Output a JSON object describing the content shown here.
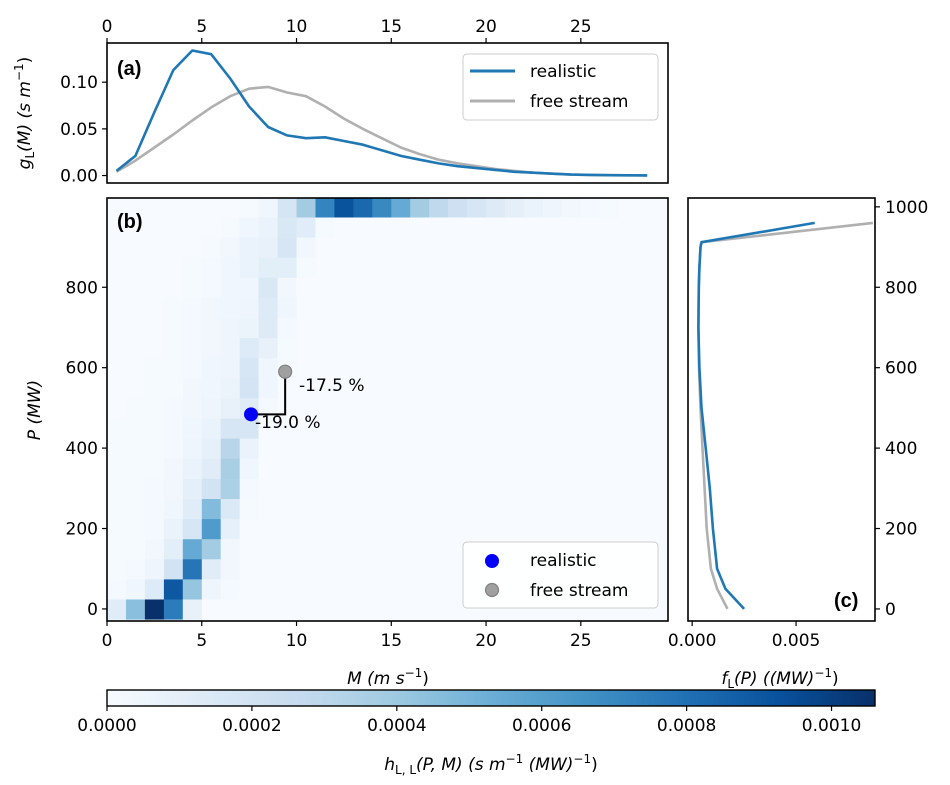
{
  "colors": {
    "realistic": "#1f77b4",
    "free_stream": "#b0b0b0",
    "realistic_marker": "#0000ff",
    "free_stream_marker": "#a0a0a0",
    "cmap": [
      "#f7fbff",
      "#deebf7",
      "#c6dbef",
      "#9ecae1",
      "#6baed6",
      "#4292c6",
      "#2171b5",
      "#08519c",
      "#08306b"
    ]
  },
  "chart_data": [
    {
      "id": "a",
      "type": "line",
      "panel_label": "(a)",
      "xlabel": "",
      "ylabel": "g_L(M) (s m^-1)",
      "ylabel_parts": {
        "main": "g",
        "sub": "L",
        "rest": "(M) (s m",
        "sup": "−1",
        "close": ")"
      },
      "xlim": [
        0,
        29.6
      ],
      "ylim": [
        -0.008,
        0.142
      ],
      "xticks": [
        0,
        5,
        10,
        15,
        20,
        25
      ],
      "xtick_labels": [
        "0",
        "5",
        "10",
        "15",
        "20",
        "25"
      ],
      "xaxis_position": "top",
      "yticks": [
        0.0,
        0.05,
        0.1
      ],
      "ytick_labels": [
        "0.00",
        "0.05",
        "0.10"
      ],
      "legend": {
        "position": "top-right",
        "entries": [
          "realistic",
          "free stream"
        ]
      },
      "x": [
        0.5,
        1.5,
        2.5,
        3.5,
        4.5,
        5.5,
        6.5,
        7.5,
        8.5,
        9.5,
        10.5,
        11.5,
        12.5,
        13.5,
        14.5,
        15.5,
        16.5,
        17.5,
        18.5,
        19.5,
        20.5,
        21.5,
        22.5,
        23.5,
        24.5,
        25.5,
        26.5,
        27.5,
        28.5
      ],
      "series": [
        {
          "name": "realistic",
          "values": [
            0.005,
            0.021,
            0.068,
            0.113,
            0.134,
            0.13,
            0.104,
            0.074,
            0.052,
            0.043,
            0.04,
            0.041,
            0.037,
            0.033,
            0.027,
            0.021,
            0.017,
            0.013,
            0.01,
            0.008,
            0.006,
            0.004,
            0.003,
            0.002,
            0.001,
            0.0007,
            0.0004,
            0.0002,
            0.0001
          ]
        },
        {
          "name": "free stream",
          "values": [
            0.004,
            0.016,
            0.03,
            0.044,
            0.059,
            0.073,
            0.085,
            0.093,
            0.095,
            0.089,
            0.085,
            0.074,
            0.061,
            0.05,
            0.04,
            0.03,
            0.023,
            0.017,
            0.013,
            0.01,
            0.007,
            0.005,
            0.003,
            0.002,
            0.001,
            0.0007,
            0.0004,
            0.0002,
            0.0001
          ]
        }
      ]
    },
    {
      "id": "b",
      "type": "heatmap",
      "panel_label": "(b)",
      "xlabel": "M (m s^-1)",
      "xlabel_parts": {
        "main": "M",
        "rest": " (m s",
        "sup": "−1",
        "close": ")"
      },
      "ylabel": "P (MW)",
      "xlim": [
        0,
        29.6
      ],
      "ylim": [
        -30,
        1022
      ],
      "xticks": [
        0,
        5,
        10,
        15,
        20,
        25
      ],
      "xtick_labels": [
        "0",
        "5",
        "10",
        "15",
        "20",
        "25"
      ],
      "yticks": [
        0,
        200,
        400,
        600,
        800
      ],
      "ytick_labels": [
        "0",
        "200",
        "400",
        "600",
        "800"
      ],
      "bin_width_M": 1,
      "bin_height_P": 50,
      "row_centers_P": [
        0,
        50,
        100,
        150,
        200,
        250,
        300,
        350,
        400,
        450,
        500,
        550,
        600,
        650,
        700,
        750,
        800,
        850,
        900,
        950,
        1000
      ],
      "vmin": 0.0,
      "vmax": 0.00106,
      "grid_values_rows_bottom_to_top": [
        [
          0.00012,
          0.00045,
          0.00106,
          0.00075,
          8e-05,
          0,
          0,
          0,
          0,
          0,
          0,
          0,
          0,
          0,
          0,
          0,
          0,
          0,
          0,
          0,
          0,
          0,
          0,
          0,
          0,
          0,
          0,
          0,
          0
        ],
        [
          2e-05,
          4e-05,
          0.00014,
          0.0009,
          0.00042,
          5e-05,
          2e-05,
          0,
          0,
          0,
          0,
          0,
          0,
          0,
          0,
          0,
          0,
          0,
          0,
          0,
          0,
          0,
          0,
          0,
          0,
          0,
          0,
          0,
          0
        ],
        [
          1e-05,
          2e-05,
          5e-05,
          0.0002,
          0.00078,
          0.00012,
          3e-05,
          0,
          0,
          0,
          0,
          0,
          0,
          0,
          0,
          0,
          0,
          0,
          0,
          0,
          0,
          0,
          0,
          0,
          0,
          0,
          0,
          0,
          0
        ],
        [
          1e-05,
          1e-05,
          3e-05,
          0.00011,
          0.00055,
          0.00038,
          3e-05,
          0,
          0,
          0,
          0,
          0,
          0,
          0,
          0,
          0,
          0,
          0,
          0,
          0,
          0,
          0,
          0,
          0,
          0,
          0,
          0,
          0,
          0
        ],
        [
          1e-05,
          1e-05,
          2e-05,
          7e-05,
          0.00017,
          0.00062,
          9e-05,
          0,
          0,
          0,
          0,
          0,
          0,
          0,
          0,
          0,
          0,
          0,
          0,
          0,
          0,
          0,
          0,
          0,
          0,
          0,
          0,
          0,
          0
        ],
        [
          1e-05,
          1e-05,
          2e-05,
          4e-05,
          0.00012,
          0.00047,
          0.00015,
          1e-05,
          0,
          0,
          0,
          0,
          0,
          0,
          0,
          0,
          0,
          0,
          0,
          0,
          0,
          0,
          0,
          0,
          0,
          0,
          0,
          0,
          0
        ],
        [
          1e-05,
          1e-05,
          2e-05,
          3e-05,
          0.0001,
          0.0002,
          0.00035,
          2e-05,
          0,
          0,
          0,
          0,
          0,
          0,
          0,
          0,
          0,
          0,
          0,
          0,
          0,
          0,
          0,
          0,
          0,
          0,
          0,
          0,
          0
        ],
        [
          1e-05,
          1e-05,
          1e-05,
          3e-05,
          7e-05,
          0.00012,
          0.00036,
          4e-05,
          0,
          0,
          0,
          0,
          0,
          0,
          0,
          0,
          0,
          0,
          0,
          0,
          0,
          0,
          0,
          0,
          0,
          0,
          0,
          0,
          0
        ],
        [
          1e-05,
          1e-05,
          1e-05,
          2e-05,
          5e-05,
          9e-05,
          0.00031,
          7e-05,
          0,
          0,
          0,
          0,
          0,
          0,
          0,
          0,
          0,
          0,
          0,
          0,
          0,
          0,
          0,
          0,
          0,
          0,
          0,
          0,
          0
        ],
        [
          1e-05,
          1e-05,
          1e-05,
          2e-05,
          4e-05,
          7e-05,
          0.00017,
          0.00017,
          0,
          0,
          0,
          0,
          0,
          0,
          0,
          0,
          0,
          0,
          0,
          0,
          0,
          0,
          0,
          0,
          0,
          0,
          0,
          0,
          0
        ],
        [
          0.0,
          1e-05,
          1e-05,
          2e-05,
          3e-05,
          5e-05,
          8e-05,
          0.00012,
          2e-05,
          0,
          0,
          0,
          0,
          0,
          0,
          0,
          0,
          0,
          0,
          0,
          0,
          0,
          0,
          0,
          0,
          0,
          0,
          0,
          0
        ],
        [
          0.0,
          0.0,
          1e-05,
          1e-05,
          3e-05,
          4e-05,
          6e-05,
          0.00019,
          4e-05,
          0,
          0,
          0,
          0,
          0,
          0,
          0,
          0,
          0,
          0,
          0,
          0,
          0,
          0,
          0,
          0,
          0,
          0,
          0,
          0
        ],
        [
          0.0,
          0.0,
          1e-05,
          1e-05,
          2e-05,
          4e-05,
          5e-05,
          0.00017,
          4e-05,
          1e-05,
          0,
          0,
          0,
          0,
          0,
          0,
          0,
          0,
          0,
          0,
          0,
          0,
          0,
          0,
          0,
          0,
          0,
          0,
          0
        ],
        [
          0.0,
          0.0,
          0.0,
          1e-05,
          2e-05,
          3e-05,
          5e-05,
          0.00014,
          8e-05,
          1e-05,
          0,
          0,
          0,
          0,
          0,
          0,
          0,
          0,
          0,
          0,
          0,
          0,
          0,
          0,
          0,
          0,
          0,
          0,
          0
        ],
        [
          0.0,
          0.0,
          0.0,
          1e-05,
          2e-05,
          3e-05,
          5e-05,
          6e-05,
          0.00013,
          2e-05,
          0,
          0,
          0,
          0,
          0,
          0,
          0,
          0,
          0,
          0,
          0,
          0,
          0,
          0,
          0,
          0,
          0,
          0,
          0
        ],
        [
          0.0,
          0.0,
          0.0,
          1e-05,
          2e-05,
          3e-05,
          4e-05,
          5e-05,
          0.00014,
          4e-05,
          0,
          0,
          0,
          0,
          0,
          0,
          0,
          0,
          0,
          0,
          0,
          0,
          0,
          0,
          0,
          0,
          0,
          0,
          0
        ],
        [
          0.0,
          0.0,
          0.0,
          0.0,
          1e-05,
          2e-05,
          4e-05,
          4e-05,
          0.00016,
          3e-05,
          0,
          0,
          0,
          0,
          0,
          0,
          0,
          0,
          0,
          0,
          0,
          0,
          0,
          0,
          0,
          0,
          0,
          0,
          0
        ],
        [
          0.0,
          0.0,
          0.0,
          0.0,
          1e-05,
          2e-05,
          4e-05,
          7e-05,
          0.00011,
          0.00011,
          1e-05,
          0,
          0,
          0,
          0,
          0,
          0,
          0,
          0,
          0,
          0,
          0,
          0,
          0,
          0,
          0,
          0,
          0,
          0
        ],
        [
          0.0,
          0.0,
          0.0,
          0.0,
          0.0,
          1e-05,
          3e-05,
          7e-05,
          8e-05,
          0.00017,
          3e-05,
          0,
          0,
          0,
          0,
          0,
          0,
          0,
          0,
          0,
          0,
          0,
          0,
          0,
          0,
          0,
          0,
          0,
          0
        ],
        [
          0.0,
          0.0,
          0.0,
          0.0,
          0.0,
          0.0,
          1e-05,
          4e-05,
          7e-05,
          0.00016,
          0.00012,
          1e-05,
          0,
          0,
          0,
          0,
          0,
          0,
          0,
          0,
          0,
          0,
          0,
          0,
          0,
          0,
          0,
          0,
          0
        ],
        [
          0.0,
          0.0,
          0.0,
          0.0,
          0.0,
          0.0,
          0.0,
          1e-05,
          4e-05,
          0.00018,
          0.00038,
          0.00072,
          0.00092,
          0.00083,
          0.0007,
          0.00055,
          0.00038,
          0.00028,
          0.00022,
          0.00017,
          0.00013,
          0.0001,
          7e-05,
          5e-05,
          3e-05,
          2e-05,
          1e-05,
          0.0,
          0.0
        ]
      ],
      "markers": [
        {
          "name": "realistic",
          "M": 7.6,
          "P": 484
        },
        {
          "name": "free stream",
          "M": 9.4,
          "P": 590
        }
      ],
      "annotations": [
        {
          "text": "-17.5 %",
          "anchor": "free stream"
        },
        {
          "text": "-19.0 %",
          "anchor": "realistic"
        }
      ],
      "legend": {
        "position": "bottom-right",
        "entries": [
          "realistic",
          "free stream"
        ]
      }
    },
    {
      "id": "c",
      "type": "line",
      "panel_label": "(c)",
      "xlabel": "f_L(P) ((MW)^-1)",
      "xlabel_parts": {
        "main": "f",
        "sub": "L",
        "rest": "(P) ((MW)",
        "sup": "−1",
        "close": ")"
      },
      "xlim": [
        -0.0002,
        0.0088
      ],
      "ylim": [
        -30,
        1022
      ],
      "xticks": [
        0.0,
        0.005
      ],
      "xtick_labels": [
        "0.000",
        "0.005"
      ],
      "yticks": [
        0,
        200,
        400,
        600,
        800,
        1000
      ],
      "ytick_labels": [
        "0",
        "200",
        "400",
        "600",
        "800",
        "1000"
      ],
      "yaxis_position": "right",
      "series": [
        {
          "name": "realistic",
          "P": [
            0,
            50,
            100,
            150,
            200,
            300,
            400,
            500,
            600,
            700,
            800,
            850,
            900,
            912,
            960
          ],
          "values": [
            0.0025,
            0.0016,
            0.0012,
            0.0011,
            0.001,
            0.00085,
            0.00065,
            0.00045,
            0.00035,
            0.0003,
            0.00032,
            0.00035,
            0.0004,
            0.00045,
            0.0059
          ]
        },
        {
          "name": "free stream",
          "P": [
            0,
            50,
            100,
            150,
            200,
            300,
            400,
            500,
            600,
            700,
            800,
            850,
            900,
            912,
            960
          ],
          "values": [
            0.0017,
            0.0012,
            0.0009,
            0.0008,
            0.0007,
            0.0006,
            0.0005,
            0.0004,
            0.00033,
            0.0003,
            0.00032,
            0.00035,
            0.0004,
            0.00045,
            0.0087
          ]
        }
      ]
    }
  ],
  "colorbar": {
    "label": "h_L,L(P,M) (s m^-1 (MW)^-1)",
    "label_parts": {
      "main": "h",
      "sub": "L, L",
      "rest": "(P, M) (s m",
      "sup1": "−1",
      "mid": " (MW)",
      "sup2": "−1",
      "close": ")"
    },
    "range": [
      0.0,
      0.00106
    ],
    "ticks": [
      0.0,
      0.0002,
      0.0004,
      0.0006,
      0.0008,
      0.001
    ],
    "tick_labels": [
      "0.0000",
      "0.0002",
      "0.0004",
      "0.0006",
      "0.0008",
      "0.0010"
    ],
    "orientation": "horizontal"
  }
}
